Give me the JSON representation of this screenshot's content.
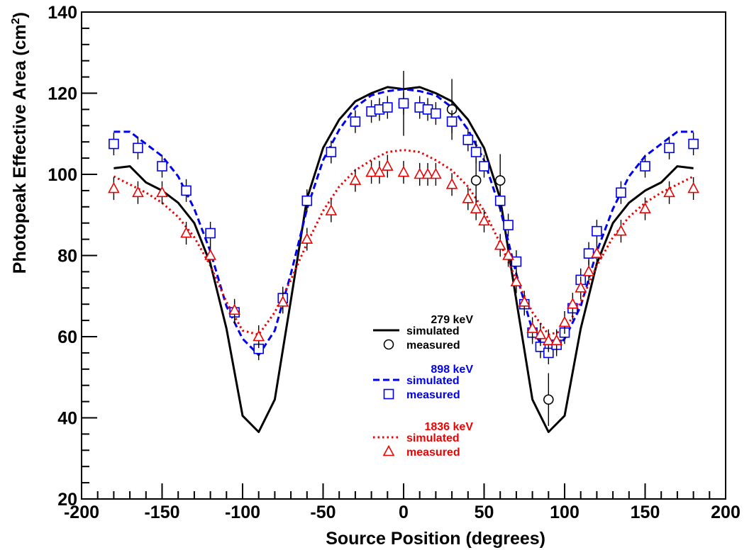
{
  "chart_data": {
    "type": "scatter",
    "title": "",
    "xlabel": "Source Position (degrees)",
    "ylabel": "Photopeak Effective Area (cm",
    "ylabel_sup": "2",
    "ylabel_close": ")",
    "xlim": [
      -200,
      200
    ],
    "ylim": [
      20,
      140
    ],
    "x_ticks": [
      -200,
      -150,
      -100,
      -50,
      0,
      50,
      100,
      150,
      200
    ],
    "y_ticks": [
      20,
      40,
      60,
      80,
      100,
      120,
      140
    ],
    "x_tick_labels": [
      "-200",
      "-150",
      "-100",
      "-50",
      "0",
      "50",
      "100",
      "150",
      "200"
    ],
    "y_tick_labels": [
      "20",
      "40",
      "60",
      "80",
      "100",
      "120",
      "140"
    ],
    "grid": false,
    "legend_placement": "center-right",
    "series": [
      {
        "energy": "279 keV",
        "color": "#000000",
        "simulated_label": "simulated",
        "measured_label": "measured",
        "simulated_style": "solid",
        "marker": "circle",
        "simulated": {
          "x": [
            -180,
            -170,
            -160,
            -150,
            -140,
            -130,
            -120,
            -110,
            -100,
            -90,
            -80,
            -70,
            -60,
            -50,
            -40,
            -30,
            -20,
            -10,
            0,
            10,
            20,
            30,
            40,
            50,
            60,
            70,
            80,
            90,
            100,
            110,
            120,
            130,
            140,
            150,
            160,
            170,
            180
          ],
          "y": [
            101.5,
            102,
            98,
            96,
            93,
            88,
            78,
            62,
            40.5,
            36.5,
            44.5,
            69,
            94,
            106.5,
            113.5,
            118,
            120,
            121.5,
            121,
            121.5,
            120,
            118,
            113.5,
            106.5,
            94,
            69,
            44.5,
            36.5,
            40.5,
            62,
            78,
            88,
            93,
            96,
            98,
            102,
            101.5
          ]
        },
        "measured": {
          "x": [
            0,
            30,
            45,
            60,
            90
          ],
          "y": [
            117.5,
            116,
            98.5,
            98.5,
            44.5
          ],
          "err": [
            8,
            7.5,
            5.5,
            6.5,
            6.5
          ]
        }
      },
      {
        "energy": "898 keV",
        "color": "#0000ee",
        "simulated_label": "simulated",
        "measured_label": "measured",
        "simulated_style": "dashed",
        "marker": "square",
        "simulated": {
          "x": [
            -180,
            -170,
            -160,
            -150,
            -140,
            -130,
            -120,
            -110,
            -100,
            -90,
            -80,
            -70,
            -60,
            -50,
            -40,
            -30,
            -20,
            -10,
            0,
            10,
            20,
            30,
            40,
            50,
            60,
            70,
            80,
            90,
            100,
            110,
            120,
            130,
            140,
            150,
            160,
            170,
            180
          ],
          "y": [
            110.5,
            110.5,
            107.5,
            104.5,
            99.5,
            91.5,
            81,
            67.5,
            59.5,
            55.5,
            61.5,
            75.5,
            91.5,
            103.5,
            111,
            116.5,
            119.5,
            120.5,
            121,
            120.5,
            119.5,
            116.5,
            111,
            103.5,
            91.5,
            75.5,
            61.5,
            55.5,
            59.5,
            67.5,
            81,
            91.5,
            99.5,
            104.5,
            107.5,
            110.5,
            110.5
          ]
        },
        "measured": {
          "x": [
            -180,
            -165,
            -150,
            -135,
            -120,
            -105,
            -90,
            -75,
            -60,
            -45,
            -30,
            -20,
            -15,
            -10,
            0,
            10,
            15,
            20,
            30,
            40,
            45,
            50,
            60,
            65,
            70,
            75,
            80,
            85,
            90,
            95,
            100,
            105,
            110,
            115,
            120,
            135,
            150,
            165,
            180
          ],
          "y": [
            107.5,
            106.5,
            102,
            96,
            85.5,
            66,
            57,
            69.5,
            93.5,
            105.5,
            113,
            115.5,
            116,
            116.5,
            117.5,
            116.5,
            116,
            115,
            113,
            108.5,
            105.5,
            102,
            93.5,
            87.5,
            78.5,
            68,
            61,
            57.5,
            56,
            58,
            61,
            67,
            74,
            80.5,
            86,
            95.5,
            102,
            106.5,
            107.5
          ]
        }
      },
      {
        "energy": "1836 keV",
        "color": "#ee0000",
        "simulated_label": "simulated",
        "measured_label": "measured",
        "simulated_style": "dotted",
        "marker": "triangle",
        "simulated": {
          "x": [
            -180,
            -170,
            -160,
            -150,
            -140,
            -130,
            -120,
            -110,
            -100,
            -90,
            -80,
            -70,
            -60,
            -50,
            -40,
            -30,
            -20,
            -10,
            0,
            10,
            20,
            30,
            40,
            50,
            60,
            70,
            80,
            90,
            100,
            110,
            120,
            130,
            140,
            150,
            160,
            170,
            180
          ],
          "y": [
            99.5,
            97.5,
            95.5,
            93,
            89.5,
            84.5,
            77.5,
            68.5,
            61.5,
            60.5,
            66,
            74,
            83,
            91,
            97,
            101,
            103.5,
            105.5,
            106,
            105.5,
            103.5,
            101,
            97,
            91,
            83,
            74,
            66,
            60.5,
            61.5,
            68.5,
            77.5,
            84.5,
            89.5,
            93,
            95.5,
            97.5,
            99.5
          ]
        },
        "measured": {
          "x": [
            -180,
            -165,
            -150,
            -135,
            -120,
            -105,
            -90,
            -75,
            -60,
            -45,
            -30,
            -20,
            -15,
            -10,
            0,
            10,
            15,
            20,
            30,
            40,
            45,
            50,
            60,
            65,
            70,
            75,
            80,
            85,
            90,
            95,
            100,
            105,
            110,
            115,
            120,
            135,
            150,
            165,
            180
          ],
          "y": [
            96.5,
            95.5,
            95.5,
            85.5,
            80,
            66.5,
            60,
            68.5,
            84,
            91,
            98.5,
            100.5,
            100.5,
            102,
            100.5,
            100,
            100,
            100,
            97.5,
            94,
            91.5,
            88.5,
            82.5,
            80,
            73.5,
            68.5,
            62,
            60.5,
            59,
            59,
            63.5,
            68,
            72,
            76,
            80.5,
            86,
            91.5,
            95.5,
            96.5
          ]
        }
      }
    ]
  }
}
